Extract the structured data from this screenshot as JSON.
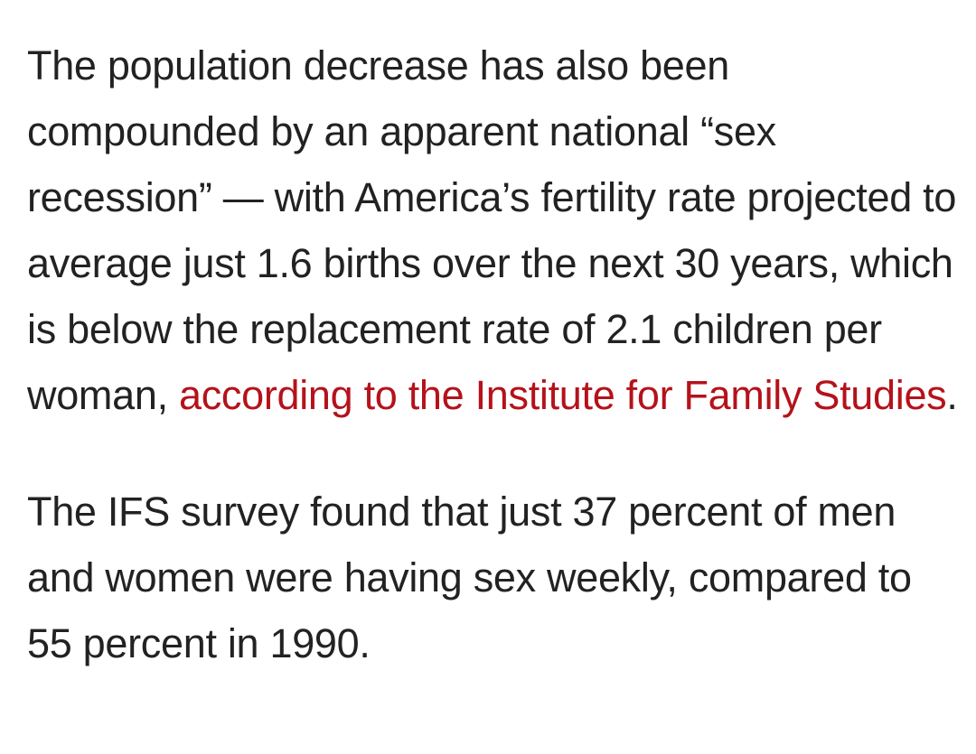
{
  "article": {
    "paragraph1": {
      "text_before_link": "The population decrease has also been compounded by an apparent national “sex recession” — with America’s fertility rate projected to average just 1.6 births over the next 30 years, which is below the replacement rate of 2.1 children per woman, ",
      "link_text": "according to the Institute for Family Studies",
      "text_after_link": "."
    },
    "paragraph2": {
      "text": "The IFS survey found that just 37 percent of men and women were having sex weekly, compared to 55 percent in 1990."
    }
  },
  "colors": {
    "body_text": "#222222",
    "link": "#b5121b",
    "background": "#ffffff"
  }
}
